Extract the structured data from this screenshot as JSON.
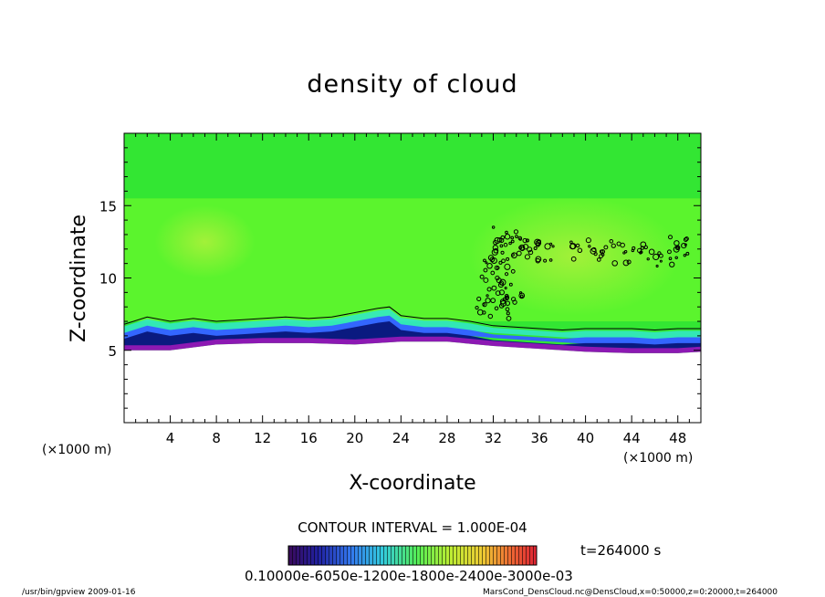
{
  "chart_data": {
    "type": "heatmap",
    "title": "density of cloud",
    "xlabel": "X-coordinate",
    "ylabel": "Z-coordinate",
    "x_unit": "(×1000 m)",
    "y_unit": "(×1000 m)",
    "xlim": [
      0,
      50
    ],
    "ylim": [
      0,
      20
    ],
    "x_ticks": [
      "4",
      "8",
      "12",
      "16",
      "20",
      "24",
      "28",
      "32",
      "36",
      "40",
      "44",
      "48"
    ],
    "y_ticks": [
      "5",
      "10",
      "15"
    ],
    "contour_interval_label": "CONTOUR INTERVAL = 1.000E-04",
    "time_label": "t=264000 s",
    "colorbar_labels": "0.10000e-6050e-1200e-1800e-2400e-3000e-03",
    "colorbar_range": [
      0.0,
      0.0003
    ],
    "cloud_top_profile": [
      {
        "x": 0,
        "z": 6.8
      },
      {
        "x": 2,
        "z": 7.3
      },
      {
        "x": 4,
        "z": 7.0
      },
      {
        "x": 6,
        "z": 7.2
      },
      {
        "x": 8,
        "z": 7.0
      },
      {
        "x": 10,
        "z": 7.1
      },
      {
        "x": 12,
        "z": 7.2
      },
      {
        "x": 14,
        "z": 7.3
      },
      {
        "x": 16,
        "z": 7.2
      },
      {
        "x": 18,
        "z": 7.3
      },
      {
        "x": 20,
        "z": 7.6
      },
      {
        "x": 22,
        "z": 7.9
      },
      {
        "x": 23,
        "z": 8.0
      },
      {
        "x": 24,
        "z": 7.4
      },
      {
        "x": 26,
        "z": 7.2
      },
      {
        "x": 28,
        "z": 7.2
      },
      {
        "x": 30,
        "z": 7.0
      },
      {
        "x": 32,
        "z": 6.7
      },
      {
        "x": 34,
        "z": 6.6
      },
      {
        "x": 36,
        "z": 6.5
      },
      {
        "x": 38,
        "z": 6.4
      },
      {
        "x": 40,
        "z": 6.5
      },
      {
        "x": 42,
        "z": 6.5
      },
      {
        "x": 44,
        "z": 6.5
      },
      {
        "x": 46,
        "z": 6.4
      },
      {
        "x": 48,
        "z": 6.5
      },
      {
        "x": 50,
        "z": 6.5
      }
    ],
    "cloud_base_profile": [
      {
        "x": 0,
        "z": 5.0
      },
      {
        "x": 4,
        "z": 5.0
      },
      {
        "x": 8,
        "z": 5.4
      },
      {
        "x": 12,
        "z": 5.5
      },
      {
        "x": 16,
        "z": 5.5
      },
      {
        "x": 20,
        "z": 5.4
      },
      {
        "x": 24,
        "z": 5.6
      },
      {
        "x": 28,
        "z": 5.6
      },
      {
        "x": 32,
        "z": 5.3
      },
      {
        "x": 36,
        "z": 5.1
      },
      {
        "x": 40,
        "z": 4.9
      },
      {
        "x": 44,
        "z": 4.8
      },
      {
        "x": 48,
        "z": 4.8
      },
      {
        "x": 50,
        "z": 4.9
      }
    ],
    "cloud_clusters": [
      {
        "x": 33.5,
        "z": 12.5
      },
      {
        "x": 34.5,
        "z": 12.0
      },
      {
        "x": 36,
        "z": 11.8
      },
      {
        "x": 32.5,
        "z": 10.5
      },
      {
        "x": 33,
        "z": 9.0
      },
      {
        "x": 32,
        "z": 8.0
      },
      {
        "x": 40,
        "z": 12.0
      },
      {
        "x": 43,
        "z": 11.8
      },
      {
        "x": 46,
        "z": 11.5
      },
      {
        "x": 48,
        "z": 12.0
      }
    ],
    "colors": {
      "background_green": "#33e633",
      "bright_green": "#7cff28",
      "yellow_green": "#b8ee32",
      "cyan": "#33e6cc",
      "blue": "#3366ff",
      "navy": "#0a1a80",
      "purple": "#8c19b3",
      "contour": "#000000"
    }
  },
  "footer": {
    "left": "/usr/bin/gpview   2009-01-16",
    "right": "MarsCond_DensCloud.nc@DensCloud,x=0:50000,z=0:20000,t=264000"
  }
}
